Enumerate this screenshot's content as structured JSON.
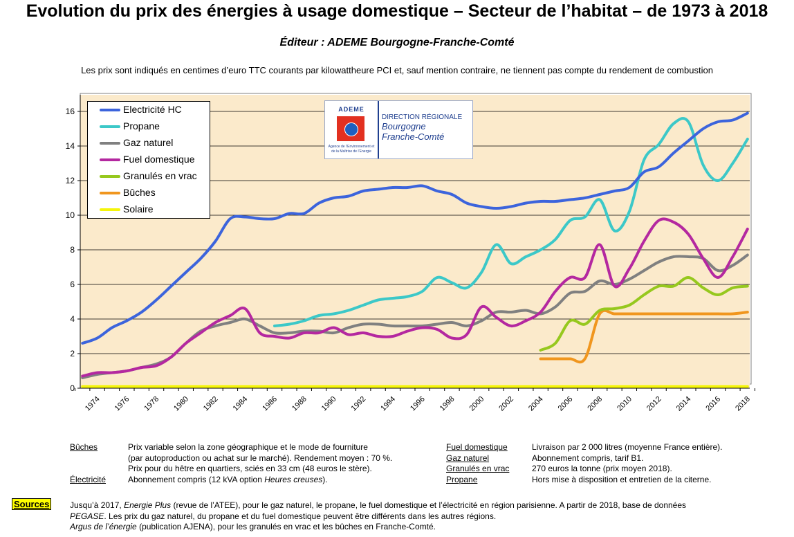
{
  "header": {
    "title": "Evolution du prix des énergies à usage domestique – Secteur de l’habitat – de 1973 à 2018",
    "editor": "Éditeur : ADEME Bourgogne-Franche-Comté",
    "subtitle": "Les prix sont indiqués en centimes d’euro TTC courants par kilowattheure PCI et, sauf mention contraire, ne tiennent pas compte du rendement de combustion"
  },
  "logo": {
    "brand": "ADEME",
    "tagline": "Agence de l’Environnement et de la Maîtrise de l’Energie",
    "line1": "DIRECTION RÉGIONALE",
    "line2": "Bourgogne",
    "line3": "Franche-Comté"
  },
  "chart_data": {
    "type": "line",
    "title": "Evolution du prix des énergies à usage domestique – Secteur de l’habitat – de 1973 à 2018",
    "xlabel": "",
    "ylabel": "",
    "xlim": [
      1973,
      2018
    ],
    "ylim": [
      0,
      17
    ],
    "yticks": [
      0,
      2,
      4,
      6,
      8,
      10,
      12,
      14,
      16
    ],
    "xticks": [
      1974,
      1976,
      1978,
      1980,
      1982,
      1984,
      1986,
      1988,
      1990,
      1992,
      1994,
      1996,
      1998,
      2000,
      2002,
      2004,
      2006,
      2008,
      2010,
      2012,
      2014,
      2016,
      2018
    ],
    "grid": true,
    "legend_position": "top-left",
    "series": [
      {
        "name": "Electricité HC",
        "color": "#3c64dc",
        "x": [
          1973,
          1974,
          1975,
          1976,
          1977,
          1978,
          1979,
          1980,
          1981,
          1982,
          1983,
          1984,
          1985,
          1986,
          1987,
          1988,
          1989,
          1990,
          1991,
          1992,
          1993,
          1994,
          1995,
          1996,
          1997,
          1998,
          1999,
          2000,
          2001,
          2002,
          2003,
          2004,
          2005,
          2006,
          2007,
          2008,
          2009,
          2010,
          2011,
          2012,
          2013,
          2014,
          2015,
          2016,
          2017,
          2018
        ],
        "values": [
          2.6,
          2.9,
          3.5,
          3.9,
          4.4,
          5.1,
          5.9,
          6.7,
          7.5,
          8.5,
          9.8,
          9.9,
          9.8,
          9.8,
          10.1,
          10.1,
          10.7,
          11.0,
          11.1,
          11.4,
          11.5,
          11.6,
          11.6,
          11.7,
          11.4,
          11.2,
          10.7,
          10.5,
          10.4,
          10.5,
          10.7,
          10.8,
          10.8,
          10.9,
          11.0,
          11.2,
          11.4,
          11.6,
          12.5,
          12.8,
          13.6,
          14.3,
          15.0,
          15.4,
          15.5,
          15.9
        ]
      },
      {
        "name": "Propane",
        "color": "#3cc8c8",
        "x": [
          1986,
          1987,
          1988,
          1989,
          1990,
          1991,
          1992,
          1993,
          1994,
          1995,
          1996,
          1997,
          1998,
          1999,
          2000,
          2001,
          2002,
          2003,
          2004,
          2005,
          2006,
          2007,
          2008,
          2009,
          2010,
          2011,
          2012,
          2013,
          2014,
          2015,
          2016,
          2017,
          2018
        ],
        "values": [
          3.6,
          3.7,
          3.9,
          4.2,
          4.3,
          4.5,
          4.8,
          5.1,
          5.2,
          5.3,
          5.6,
          6.4,
          6.1,
          5.8,
          6.7,
          8.3,
          7.2,
          7.6,
          8.0,
          8.6,
          9.7,
          9.9,
          10.9,
          9.1,
          10.2,
          13.2,
          14.1,
          15.3,
          15.4,
          12.9,
          12.0,
          13.0,
          14.4
        ]
      },
      {
        "name": "Gaz naturel",
        "color": "#808080",
        "x": [
          1973,
          1974,
          1975,
          1976,
          1977,
          1978,
          1979,
          1980,
          1981,
          1982,
          1983,
          1984,
          1985,
          1986,
          1987,
          1988,
          1989,
          1990,
          1991,
          1992,
          1993,
          1994,
          1995,
          1996,
          1997,
          1998,
          1999,
          2000,
          2001,
          2002,
          2003,
          2004,
          2005,
          2006,
          2007,
          2008,
          2009,
          2010,
          2011,
          2012,
          2013,
          2014,
          2015,
          2016,
          2017,
          2018
        ],
        "values": [
          0.6,
          0.8,
          0.9,
          1.0,
          1.2,
          1.4,
          1.8,
          2.6,
          3.3,
          3.6,
          3.8,
          4.0,
          3.6,
          3.2,
          3.2,
          3.3,
          3.3,
          3.2,
          3.5,
          3.7,
          3.7,
          3.6,
          3.6,
          3.6,
          3.7,
          3.8,
          3.6,
          3.9,
          4.4,
          4.4,
          4.5,
          4.3,
          4.7,
          5.5,
          5.6,
          6.2,
          6.0,
          6.3,
          6.8,
          7.3,
          7.6,
          7.6,
          7.5,
          6.8,
          7.1,
          7.7
        ]
      },
      {
        "name": "Fuel domestique",
        "color": "#b428a0",
        "x": [
          1973,
          1974,
          1975,
          1976,
          1977,
          1978,
          1979,
          1980,
          1981,
          1982,
          1983,
          1984,
          1985,
          1986,
          1987,
          1988,
          1989,
          1990,
          1991,
          1992,
          1993,
          1994,
          1995,
          1996,
          1997,
          1998,
          1999,
          2000,
          2001,
          2002,
          2003,
          2004,
          2005,
          2006,
          2007,
          2008,
          2009,
          2010,
          2011,
          2012,
          2013,
          2014,
          2015,
          2016,
          2017,
          2018
        ],
        "values": [
          0.7,
          0.9,
          0.9,
          1.0,
          1.2,
          1.3,
          1.8,
          2.6,
          3.2,
          3.8,
          4.2,
          4.6,
          3.2,
          3.0,
          2.9,
          3.2,
          3.2,
          3.5,
          3.1,
          3.2,
          3.0,
          3.0,
          3.3,
          3.5,
          3.4,
          2.9,
          3.1,
          4.7,
          4.1,
          3.6,
          3.9,
          4.4,
          5.6,
          6.4,
          6.4,
          8.3,
          5.9,
          6.9,
          8.5,
          9.7,
          9.6,
          8.9,
          7.5,
          6.4,
          7.6,
          9.2
        ]
      },
      {
        "name": "Granulés en vrac",
        "color": "#96c81e",
        "x": [
          2004,
          2005,
          2006,
          2007,
          2008,
          2009,
          2010,
          2011,
          2012,
          2013,
          2014,
          2015,
          2016,
          2017,
          2018
        ],
        "values": [
          2.2,
          2.6,
          3.9,
          3.7,
          4.5,
          4.6,
          4.8,
          5.4,
          5.9,
          5.9,
          6.4,
          5.8,
          5.4,
          5.8,
          5.9
        ]
      },
      {
        "name": "Bûches",
        "color": "#f0961e",
        "x": [
          2004,
          2005,
          2006,
          2007,
          2008,
          2009,
          2010,
          2011,
          2012,
          2013,
          2014,
          2015,
          2016,
          2017,
          2018
        ],
        "values": [
          1.7,
          1.7,
          1.7,
          1.7,
          4.3,
          4.3,
          4.3,
          4.3,
          4.3,
          4.3,
          4.3,
          4.3,
          4.3,
          4.3,
          4.4
        ]
      },
      {
        "name": "Solaire",
        "color": "#f5f50a",
        "x": [
          1973,
          2018
        ],
        "values": [
          0.1,
          0.1
        ]
      }
    ]
  },
  "notes": {
    "buches_label": "Bûches",
    "buches_text_1": "Prix variable selon la zone géographique et le mode de fourniture",
    "buches_text_2": "(par autoproduction ou achat sur le marché). Rendement moyen : 70 %.",
    "buches_text_3": "Prix pour du hêtre en quartiers, sciés en 33 cm (48 euros le stère).",
    "electricite_label": "Électricité",
    "electricite_text_a": "Abonnement compris (12 kVA option ",
    "electricite_text_b": "Heures creuses",
    "electricite_text_c": ").",
    "fuel_label": "Fuel domestique",
    "fuel_text": "Livraison par 2 000 litres (moyenne France entière).",
    "gaz_label": "Gaz naturel",
    "gaz_text": "Abonnement compris, tarif B1.",
    "granules_label": "Granulés en vrac",
    "granules_text": "270 euros la tonne (prix moyen 2018).",
    "propane_label": "Propane",
    "propane_text": "Hors mise à disposition et entretien de la citerne."
  },
  "sources": {
    "badge": "Sources",
    "l1_a": "Jusqu’à 2017, ",
    "l1_b": "Energie Plus",
    "l1_c": " (revue de l’ATEE), pour le gaz naturel, le propane, le fuel domestique et l’électricité en région parisienne. A partir de 2018, base de données",
    "l2_a": "PEGASE",
    "l2_b": ". Les prix du gaz naturel, du propane et du fuel domestique peuvent être différents dans les autres régions.",
    "l3_a": "Argus de l’énergie",
    "l3_b": " (publication AJENA), pour les granulés en vrac et les bûches en Franche-Comté."
  }
}
